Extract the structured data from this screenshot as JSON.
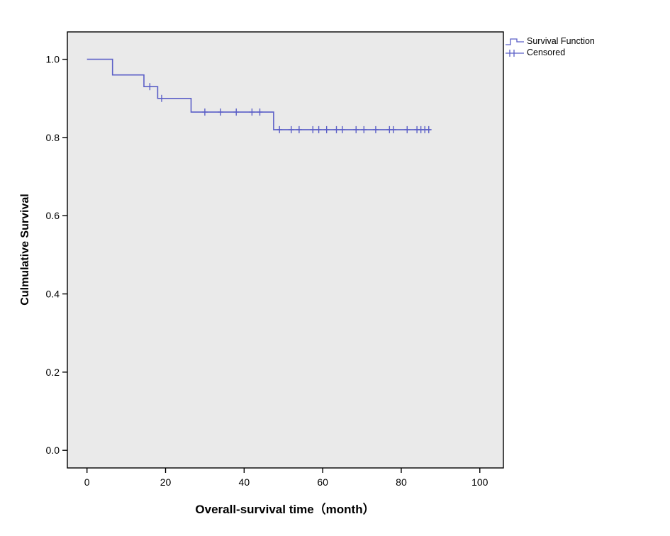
{
  "page": {
    "background": "#ffffff"
  },
  "legend": {
    "items": [
      {
        "label": "Survival Function",
        "marker": "step-line-icon"
      },
      {
        "label": "Censored",
        "marker": "plus-line-icon"
      }
    ]
  },
  "chart_data": {
    "type": "line",
    "subtype": "kaplan-meier-step",
    "title": "",
    "xlabel": "Overall-survival time（month）",
    "ylabel": "Culmulative Survival",
    "xlim": [
      -5,
      106
    ],
    "ylim": [
      -0.045,
      1.07
    ],
    "xticks": [
      0,
      20,
      40,
      60,
      80,
      100
    ],
    "xtick_labels": [
      "0",
      "20",
      "40",
      "60",
      "80",
      "100"
    ],
    "yticks": [
      0.0,
      0.2,
      0.4,
      0.6,
      0.8,
      1.0
    ],
    "ytick_labels": [
      "0.0",
      "0.2",
      "0.4",
      "0.6",
      "0.8",
      "1.0"
    ],
    "grid": false,
    "legend_position": "top-right-outside",
    "colors": {
      "line": "#5b5fc7",
      "plot_bg": "#eaeaea",
      "frame": "#000000",
      "text": "#000000"
    },
    "series": [
      {
        "name": "Survival Function",
        "steps": [
          [
            0,
            1.0
          ],
          [
            6.5,
            1.0
          ],
          [
            6.5,
            0.96
          ],
          [
            14.5,
            0.96
          ],
          [
            14.5,
            0.93
          ],
          [
            18,
            0.93
          ],
          [
            18,
            0.9
          ],
          [
            26.5,
            0.9
          ],
          [
            26.5,
            0.865
          ],
          [
            47.5,
            0.865
          ],
          [
            47.5,
            0.82
          ],
          [
            87.5,
            0.82
          ]
        ]
      }
    ],
    "censored": [
      [
        16,
        0.93
      ],
      [
        19,
        0.9
      ],
      [
        30,
        0.865
      ],
      [
        34,
        0.865
      ],
      [
        38,
        0.865
      ],
      [
        42,
        0.865
      ],
      [
        44,
        0.865
      ],
      [
        49,
        0.82
      ],
      [
        52,
        0.82
      ],
      [
        54,
        0.82
      ],
      [
        57.5,
        0.82
      ],
      [
        59,
        0.82
      ],
      [
        61,
        0.82
      ],
      [
        63.5,
        0.82
      ],
      [
        65,
        0.82
      ],
      [
        68.5,
        0.82
      ],
      [
        70.5,
        0.82
      ],
      [
        73.5,
        0.82
      ],
      [
        77,
        0.82
      ],
      [
        78,
        0.82
      ],
      [
        81.5,
        0.82
      ],
      [
        84,
        0.82
      ],
      [
        85,
        0.82
      ],
      [
        86,
        0.82
      ],
      [
        87,
        0.82
      ]
    ]
  }
}
